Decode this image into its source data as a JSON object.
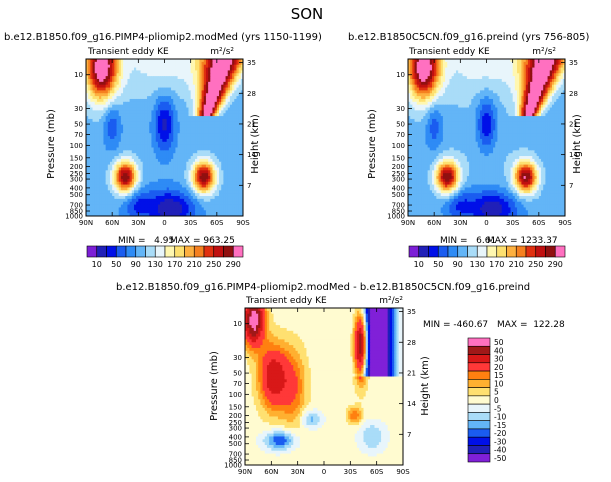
{
  "page_title": "SON",
  "chart_data": [
    {
      "type": "heatmap",
      "title": "b.e12.B1850.f09_g16.PIMP4-pliomip2.modMed (yrs 1150-1199)",
      "left_label": "Transient eddy KE",
      "units": "m²/s²",
      "ylabel": "Pressure (mb)",
      "ylabel_right": "Height (km)",
      "x_ticks": [
        "90N",
        "60N",
        "30N",
        "0",
        "30S",
        "60S",
        "90S"
      ],
      "y_ticks": [
        "10",
        "30",
        "50",
        "70",
        "100",
        "150",
        "200",
        "250",
        "300",
        "400",
        "500",
        "700",
        "850",
        "1000"
      ],
      "y_ticks_right": [
        "35",
        "28",
        "21",
        "14",
        "7"
      ],
      "stats": {
        "min": "MIN =   4.95",
        "max": "MAX = 963.25"
      },
      "colorbar": {
        "orientation": "horizontal",
        "labels": [
          "10",
          "50",
          "90",
          "130",
          "170",
          "210",
          "250",
          "290"
        ],
        "levels": [
          10,
          30,
          50,
          70,
          90,
          110,
          130,
          150,
          170,
          190,
          210,
          230,
          250,
          270,
          290
        ]
      },
      "features": [
        {
          "lat": 45,
          "p": 280,
          "value": 290
        },
        {
          "lat": -45,
          "p": 280,
          "value": 290
        },
        {
          "lat": 72,
          "p": 8,
          "value": 290
        },
        {
          "lat": -65,
          "p": 8,
          "value": 290
        }
      ]
    },
    {
      "type": "heatmap",
      "title": "b.e12.B1850C5CN.f09_g16.preind (yrs 756-805)",
      "left_label": "Transient eddy KE",
      "units": "m²/s²",
      "ylabel": "Pressure (mb)",
      "ylabel_right": "Height (km)",
      "x_ticks": [
        "90N",
        "60N",
        "30N",
        "0",
        "30S",
        "60S",
        "90S"
      ],
      "y_ticks": [
        "10",
        "30",
        "50",
        "70",
        "100",
        "150",
        "200",
        "250",
        "300",
        "400",
        "500",
        "700",
        "850",
        "1000"
      ],
      "y_ticks_right": [
        "35",
        "28",
        "21",
        "14",
        "7"
      ],
      "stats": {
        "min": "MIN =   6.61",
        "max": "MAX = 1233.37"
      },
      "colorbar": {
        "orientation": "horizontal",
        "labels": [
          "10",
          "50",
          "90",
          "130",
          "170",
          "210",
          "250",
          "290"
        ],
        "levels": [
          10,
          30,
          50,
          70,
          90,
          110,
          130,
          150,
          170,
          190,
          210,
          230,
          250,
          270,
          290
        ]
      },
      "features": [
        {
          "lat": 45,
          "p": 280,
          "value": 290
        },
        {
          "lat": -45,
          "p": 280,
          "value": 290
        },
        {
          "lat": 72,
          "p": 8,
          "value": 290
        },
        {
          "lat": -65,
          "p": 8,
          "value": 290
        }
      ]
    },
    {
      "type": "heatmap",
      "title": "b.e12.B1850.f09_g16.PIMP4-pliomip2.modMed - b.e12.B1850C5CN.f09_g16.preind",
      "left_label": "Transient eddy KE",
      "units": "m²/s²",
      "ylabel": "Pressure (mb)",
      "ylabel_right": "Height (km)",
      "x_ticks": [
        "90N",
        "60N",
        "30N",
        "0",
        "30S",
        "60S",
        "90S"
      ],
      "y_ticks": [
        "10",
        "30",
        "50",
        "70",
        "100",
        "150",
        "200",
        "250",
        "300",
        "400",
        "500",
        "700",
        "850",
        "1000"
      ],
      "y_ticks_right": [
        "35",
        "28",
        "21",
        "14",
        "7"
      ],
      "stats": {
        "min": "MIN = -460.67",
        "max": "MAX =  122.28"
      },
      "colorbar": {
        "orientation": "vertical",
        "labels": [
          "50",
          "40",
          "30",
          "20",
          "15",
          "10",
          "5",
          "0",
          "-5",
          "-10",
          "-15",
          "-20",
          "-30",
          "-40",
          "-50"
        ],
        "levels": [
          50,
          40,
          30,
          20,
          15,
          10,
          5,
          0,
          -5,
          -10,
          -15,
          -20,
          -30,
          -40,
          -50
        ]
      },
      "features": [
        {
          "lat": -58,
          "p": 25,
          "value": -50
        },
        {
          "lat": 78,
          "p": 10,
          "value": 50
        },
        {
          "lat": 60,
          "p": 60,
          "value": 30
        },
        {
          "lat": -40,
          "p": 30,
          "value": 50
        },
        {
          "lat": 55,
          "p": 420,
          "value": -25
        },
        {
          "lat": 0,
          "p": 200,
          "value": 3
        }
      ]
    }
  ],
  "colors": {
    "seq": [
      "#7c1fd6",
      "#2020b8",
      "#0010e8",
      "#1a5cf0",
      "#2e8bf5",
      "#63b5f7",
      "#a9dcf8",
      "#e8f5fb",
      "#fff7b0",
      "#fde070",
      "#fdb040",
      "#f58020",
      "#e03010",
      "#c01010",
      "#901010",
      "#ff70c0"
    ],
    "div": [
      "#ff70c0",
      "#a01818",
      "#d81818",
      "#ff3838",
      "#ff8010",
      "#ffb030",
      "#ffe070",
      "#fffbd0",
      "#e8f5fb",
      "#a9dcf8",
      "#63b5f7",
      "#1a5cf0",
      "#0010e8",
      "#2020b8",
      "#8020d8"
    ]
  }
}
